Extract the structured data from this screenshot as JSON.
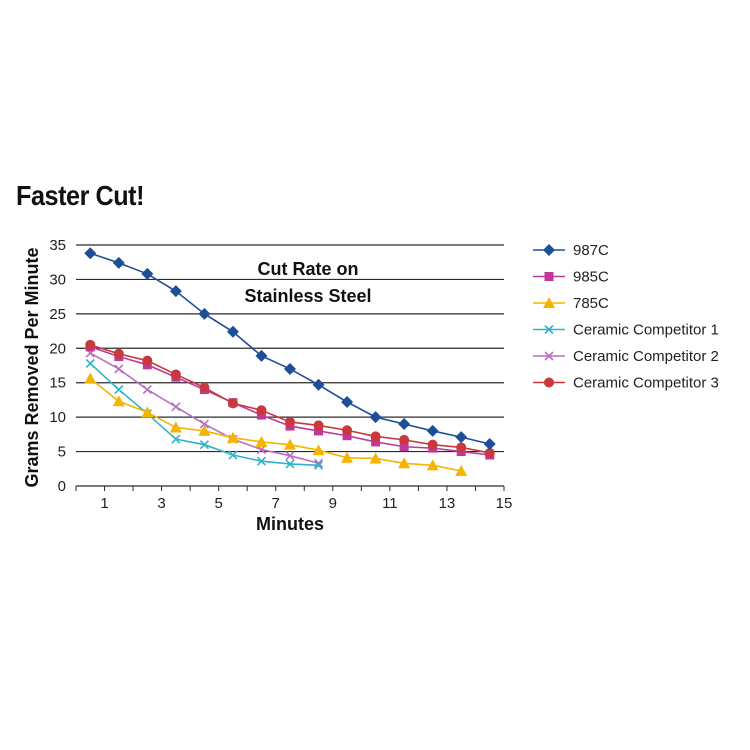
{
  "headline": "Faster Cut!",
  "chart_data": {
    "type": "line",
    "title_lines": [
      "Cut Rate on",
      "Stainless Steel"
    ],
    "xlabel": "Minutes",
    "ylabel": "Grams Removed Per Minute",
    "xlim": [
      0,
      15
    ],
    "ylim": [
      0,
      35
    ],
    "x_ticks": [
      1,
      3,
      5,
      7,
      9,
      11,
      13,
      15
    ],
    "y_ticks": [
      0,
      5,
      10,
      15,
      20,
      25,
      30,
      35
    ],
    "grid": "horizontal",
    "legend_position": "right",
    "series": [
      {
        "name": "987C",
        "color": "#1f4e99",
        "marker": "diamond",
        "x": [
          0.5,
          1.5,
          2.5,
          3.5,
          4.5,
          5.5,
          6.5,
          7.5,
          8.5,
          9.5,
          10.5,
          11.5,
          12.5,
          13.5,
          14.5
        ],
        "y": [
          33.8,
          32.4,
          30.8,
          28.3,
          25.0,
          22.4,
          18.9,
          17.0,
          14.7,
          12.2,
          10.0,
          9.0,
          8.0,
          7.1,
          6.1
        ]
      },
      {
        "name": "985C",
        "color": "#c0399a",
        "marker": "square",
        "x": [
          0.5,
          1.5,
          2.5,
          3.5,
          4.5,
          5.5,
          6.5,
          7.5,
          8.5,
          9.5,
          10.5,
          11.5,
          12.5,
          13.5,
          14.5
        ],
        "y": [
          20.2,
          18.8,
          17.6,
          15.8,
          14.0,
          12.1,
          10.3,
          8.7,
          8.0,
          7.3,
          6.4,
          5.7,
          5.5,
          5.0,
          4.5
        ]
      },
      {
        "name": "785C",
        "color": "#f5b400",
        "marker": "triangle",
        "x": [
          0.5,
          1.5,
          2.5,
          3.5,
          4.5,
          5.5,
          6.5,
          7.5,
          8.5,
          9.5,
          10.5,
          11.5,
          12.5,
          13.5
        ],
        "y": [
          15.6,
          12.3,
          10.7,
          8.5,
          8.0,
          7.0,
          6.4,
          6.0,
          5.2,
          4.1,
          4.0,
          3.3,
          3.0,
          2.2
        ]
      },
      {
        "name": "Ceramic Competitor 1",
        "color": "#2fb3c9",
        "marker": "x",
        "x": [
          0.5,
          1.5,
          2.5,
          3.5,
          4.5,
          5.5,
          6.5,
          7.5,
          8.5
        ],
        "y": [
          17.8,
          14.0,
          10.5,
          6.8,
          6.0,
          4.5,
          3.6,
          3.2,
          3.0
        ]
      },
      {
        "name": "Ceramic Competitor 2",
        "color": "#b86fc0",
        "marker": "x",
        "x": [
          0.5,
          1.5,
          2.5,
          3.5,
          4.5,
          5.5,
          6.5,
          7.5,
          8.5
        ],
        "y": [
          19.3,
          17.0,
          14.0,
          11.5,
          9.0,
          6.8,
          5.3,
          4.4,
          3.3
        ]
      },
      {
        "name": "Ceramic Competitor 3",
        "color": "#c8383c",
        "marker": "circle",
        "x": [
          0.5,
          1.5,
          2.5,
          3.5,
          4.5,
          5.5,
          6.5,
          7.5,
          8.5,
          9.5,
          10.5,
          11.5,
          12.5,
          13.5,
          14.5
        ],
        "y": [
          20.5,
          19.2,
          18.2,
          16.2,
          14.3,
          12.0,
          11.0,
          9.3,
          8.8,
          8.1,
          7.2,
          6.7,
          6.0,
          5.6,
          4.8
        ]
      }
    ]
  }
}
